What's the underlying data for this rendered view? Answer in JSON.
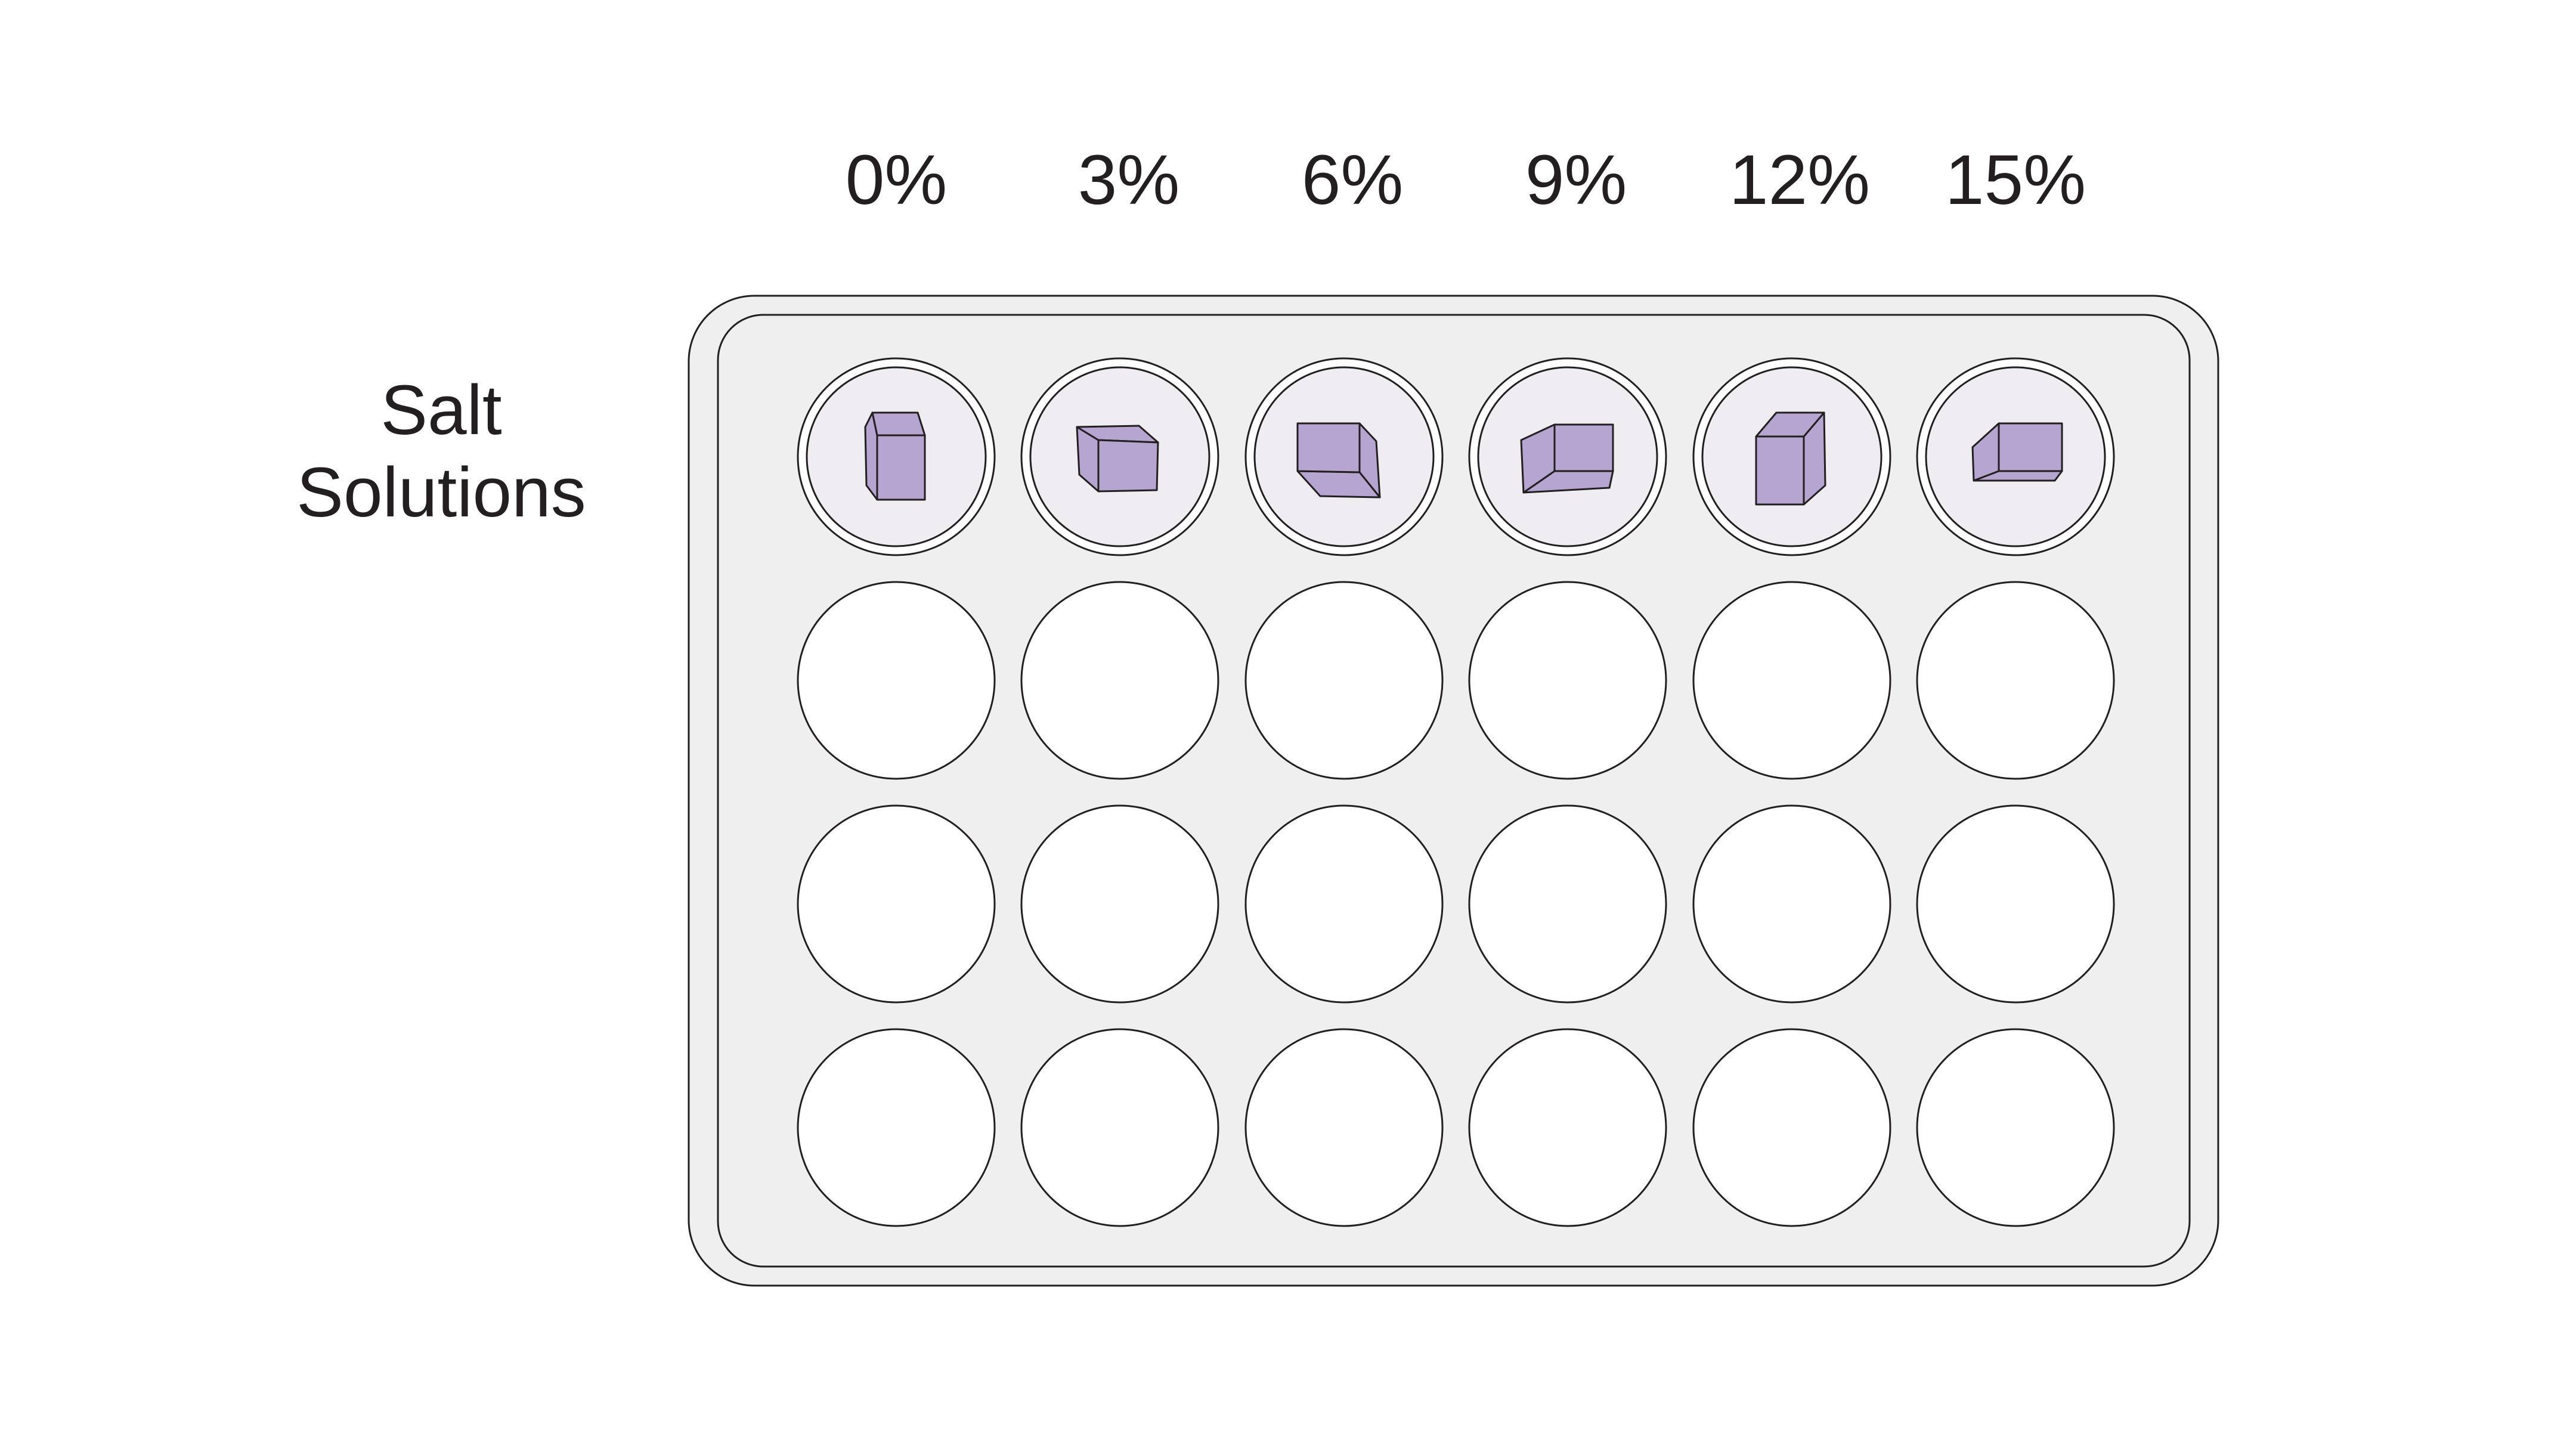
{
  "figure": {
    "column_labels": [
      "0%",
      "3%",
      "6%",
      "9%",
      "12%",
      "15%"
    ],
    "row_label_lines": [
      "Salt",
      "Solutions"
    ],
    "plate": {
      "columns": 6,
      "rows": 4,
      "cube_row_index": 0
    },
    "colors": {
      "text": "#231f20",
      "plate_fill": "#f0efef",
      "plate_stroke": "#231f20",
      "well_fill": "#ffffff",
      "well_inner_fill": "#efedf1",
      "cube_fill": "#b6a5d0",
      "cube_stroke": "#231f20"
    },
    "cubes": [
      {
        "column": "0%",
        "icon": "cube-icon"
      },
      {
        "column": "3%",
        "icon": "cube-icon"
      },
      {
        "column": "6%",
        "icon": "cube-icon"
      },
      {
        "column": "9%",
        "icon": "cube-icon"
      },
      {
        "column": "12%",
        "icon": "cube-icon"
      },
      {
        "column": "15%",
        "icon": "cube-icon"
      }
    ]
  }
}
